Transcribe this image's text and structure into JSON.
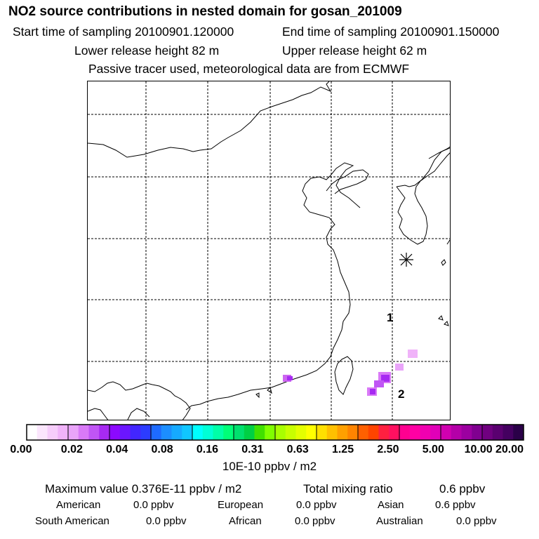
{
  "header": {
    "title": "NO2 source contributions in nested domain for gosan_201009",
    "start_label": "Start time of sampling 20100901.120000",
    "end_label": "End time of sampling 20100901.150000",
    "lower_label": "Lower release height   82 m",
    "upper_label": "Upper release height   62 m",
    "tracer_note": "Passive tracer used, meteorological data are from ECMWF"
  },
  "map": {
    "receptor_marker": "asterisk-icon",
    "label_1": "1",
    "label_2": "2",
    "colors": {
      "coast": "#000000",
      "grid": "#000000"
    }
  },
  "colorbar": {
    "ticks": [
      "0.00",
      "0.02",
      "0.04",
      "0.08",
      "0.16",
      "0.31",
      "0.63",
      "1.25",
      "2.50",
      "5.00",
      "10.00",
      "20.00"
    ],
    "segment_colors": [
      [
        "#ffffff",
        "#fbe6fd",
        "#f6cdfb",
        "#f0b3f9"
      ],
      [
        "#e9a4f9",
        "#d97af7",
        "#c055f5",
        "#a72af2"
      ],
      [
        "#8c09ff",
        "#6b16ff",
        "#4226ff",
        "#2c3cff"
      ],
      [
        "#1e6bff",
        "#1c8eff",
        "#16aaff",
        "#10c6ff"
      ],
      [
        "#00ffff",
        "#00ffd6",
        "#00ffa8",
        "#00ff78"
      ],
      [
        "#00e06e",
        "#00d044",
        "#40e000",
        "#80ff00"
      ],
      [
        "#a8ff00",
        "#c8ff00",
        "#e4ff00",
        "#ffff00"
      ],
      [
        "#ffe000",
        "#ffc000",
        "#ffa000",
        "#ff8400"
      ],
      [
        "#ff6000",
        "#ff4400",
        "#ff2040",
        "#ff1060"
      ],
      [
        "#ff0090",
        "#ff00a4",
        "#f000b0",
        "#e000b8"
      ],
      [
        "#d000b0",
        "#b400a8",
        "#9c00a0",
        "#800090"
      ],
      [
        "#700080",
        "#5a0070",
        "#440060",
        "#2a0048"
      ]
    ],
    "unit": "10E-10 ppbv / m2"
  },
  "summary": {
    "max_label": "Maximum value  0.376E-11 ppbv / m2",
    "total_label": "Total mixing ratio",
    "total_value": "0.6 ppbv",
    "rows": [
      [
        {
          "name": "American",
          "value": "0.0 ppbv"
        },
        {
          "name": "European",
          "value": "0.0 ppbv"
        },
        {
          "name": "Asian",
          "value": "0.6 ppbv"
        }
      ],
      [
        {
          "name": "South American",
          "value": "0.0 ppbv"
        },
        {
          "name": "African",
          "value": "0.0 ppbv"
        },
        {
          "name": "Australian",
          "value": "0.0 ppbv"
        }
      ]
    ]
  }
}
